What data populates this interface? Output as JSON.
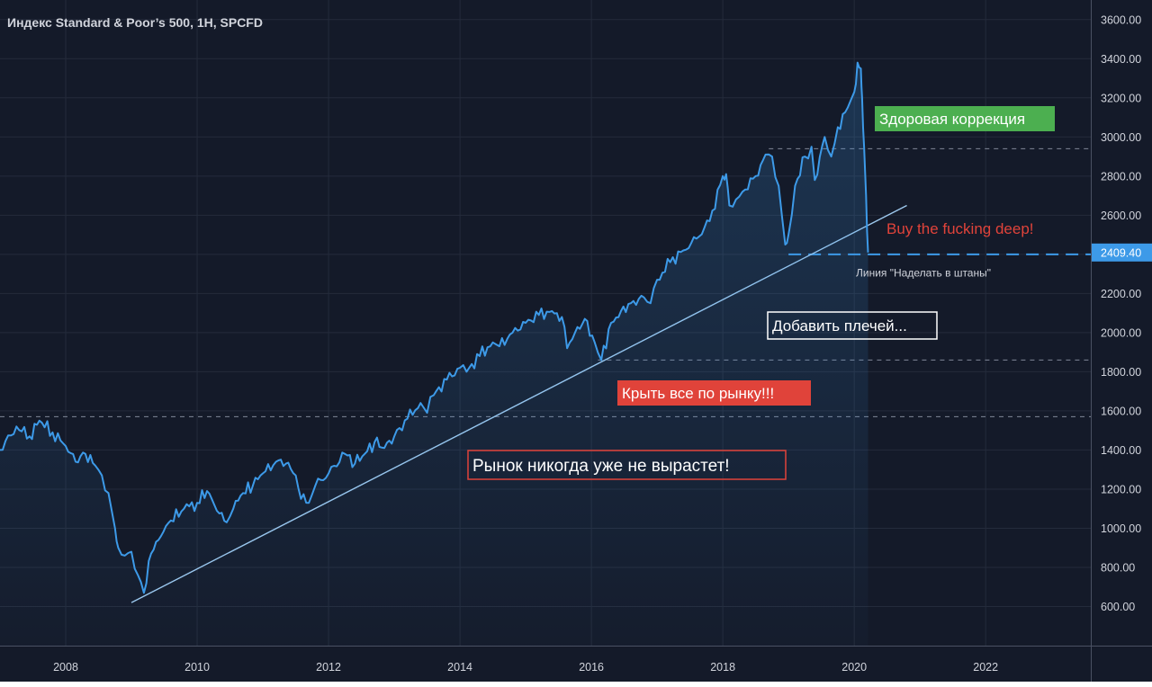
{
  "chart_data": {
    "type": "line",
    "title": "Индекс Standard & Poor’s 500, 1H, SPCFD",
    "xlabel": "",
    "ylabel": "",
    "xlim": [
      2007.0,
      2023.6
    ],
    "ylim": [
      400,
      3700
    ],
    "x_ticks": [
      "2008",
      "2010",
      "2012",
      "2014",
      "2016",
      "2018",
      "2020",
      "2022"
    ],
    "x_tick_values": [
      2008,
      2010,
      2012,
      2014,
      2016,
      2018,
      2020,
      2022
    ],
    "y_ticks": [
      "600.00",
      "800.00",
      "1000.00",
      "1200.00",
      "1400.00",
      "1600.00",
      "1800.00",
      "2000.00",
      "2200.00",
      "2400.00",
      "2600.00",
      "2800.00",
      "3000.00",
      "3200.00",
      "3400.00",
      "3600.00"
    ],
    "y_tick_values": [
      600,
      800,
      1000,
      1200,
      1400,
      1600,
      1800,
      2000,
      2200,
      2400,
      2600,
      2800,
      3000,
      3200,
      3400,
      3600
    ],
    "grid": true,
    "colors": {
      "background": "#141a29",
      "line": "#3d9ae8",
      "grid": "#242b3b",
      "trend": "#9ec9ee",
      "price_badge": "#3d9ae8"
    },
    "series": [
      {
        "x": [
          2007.0,
          2007.25,
          2007.45,
          2007.6,
          2007.8,
          2008.0,
          2008.15,
          2008.3,
          2008.45,
          2008.55,
          2008.65,
          2008.75,
          2008.8,
          2008.9,
          2009.0,
          2009.1,
          2009.19,
          2009.3,
          2009.45,
          2009.6,
          2009.8,
          2010.0,
          2010.15,
          2010.3,
          2010.45,
          2010.55,
          2010.7,
          2010.85,
          2011.0,
          2011.2,
          2011.35,
          2011.5,
          2011.58,
          2011.7,
          2011.8,
          2012.0,
          2012.25,
          2012.4,
          2012.55,
          2012.7,
          2012.85,
          2013.0,
          2013.2,
          2013.4,
          2013.5,
          2013.6,
          2013.8,
          2014.0,
          2014.1,
          2014.3,
          2014.5,
          2014.6,
          2014.8,
          2015.0,
          2015.2,
          2015.4,
          2015.55,
          2015.63,
          2015.75,
          2015.9,
          2016.05,
          2016.15,
          2016.3,
          2016.45,
          2016.6,
          2016.8,
          2016.9,
          2017.0,
          2017.2,
          2017.4,
          2017.6,
          2017.8,
          2018.0,
          2018.05,
          2018.1,
          2018.2,
          2018.3,
          2018.5,
          2018.65,
          2018.75,
          2018.85,
          2018.95,
          2019.0,
          2019.1,
          2019.25,
          2019.35,
          2019.4,
          2019.55,
          2019.65,
          2019.75,
          2019.9,
          2020.0,
          2020.05,
          2020.1,
          2020.12,
          2020.15,
          2020.18,
          2020.21
        ],
        "values": [
          1400,
          1520,
          1470,
          1550,
          1490,
          1420,
          1340,
          1380,
          1320,
          1270,
          1180,
          1000,
          900,
          860,
          880,
          760,
          670,
          870,
          960,
          1040,
          1100,
          1130,
          1190,
          1090,
          1030,
          1100,
          1180,
          1220,
          1280,
          1340,
          1330,
          1270,
          1150,
          1130,
          1220,
          1280,
          1380,
          1330,
          1380,
          1440,
          1410,
          1470,
          1560,
          1640,
          1590,
          1680,
          1760,
          1820,
          1800,
          1880,
          1950,
          1930,
          2000,
          2050,
          2090,
          2110,
          2080,
          1920,
          2000,
          2070,
          1950,
          1860,
          2050,
          2110,
          2150,
          2180,
          2150,
          2270,
          2360,
          2420,
          2480,
          2570,
          2800,
          2810,
          2650,
          2680,
          2720,
          2800,
          2910,
          2900,
          2750,
          2450,
          2500,
          2750,
          2900,
          2950,
          2780,
          3000,
          2900,
          3050,
          3150,
          3230,
          3380,
          3350,
          3200,
          2950,
          2700,
          2409.4
        ]
      }
    ],
    "last_price": {
      "label": "2409.40",
      "value": 2409.4
    },
    "annotations": [
      {
        "text": "Здоровая коррекция",
        "style": "green-box"
      },
      {
        "text": "Buy the fucking deep!",
        "style": "red-text"
      },
      {
        "text": "Линия \"Наделать в штаны\"",
        "style": "small-white"
      },
      {
        "text": "Добавить плечей...",
        "style": "white-outline-box"
      },
      {
        "text": "Крыть все по рынку!!!",
        "style": "red-box"
      },
      {
        "text": "Рынок никогда уже не вырастет!",
        "style": "red-outline-box"
      }
    ],
    "reference_lines": [
      {
        "value": 2940,
        "from_x": 2018.7,
        "to_x": 2023.6,
        "style": "dashed-thin"
      },
      {
        "value": 2400,
        "from_x": 2019.0,
        "to_x": 2023.6,
        "style": "dashed-thick"
      },
      {
        "value": 1860,
        "from_x": 2016.1,
        "to_x": 2023.6,
        "style": "dashed-thin"
      },
      {
        "value": 1570,
        "from_x": 2007.0,
        "to_x": 2023.6,
        "style": "dashed-thin"
      }
    ],
    "trendline": {
      "from": [
        2009.0,
        620
      ],
      "to": [
        2020.8,
        2650
      ]
    }
  }
}
